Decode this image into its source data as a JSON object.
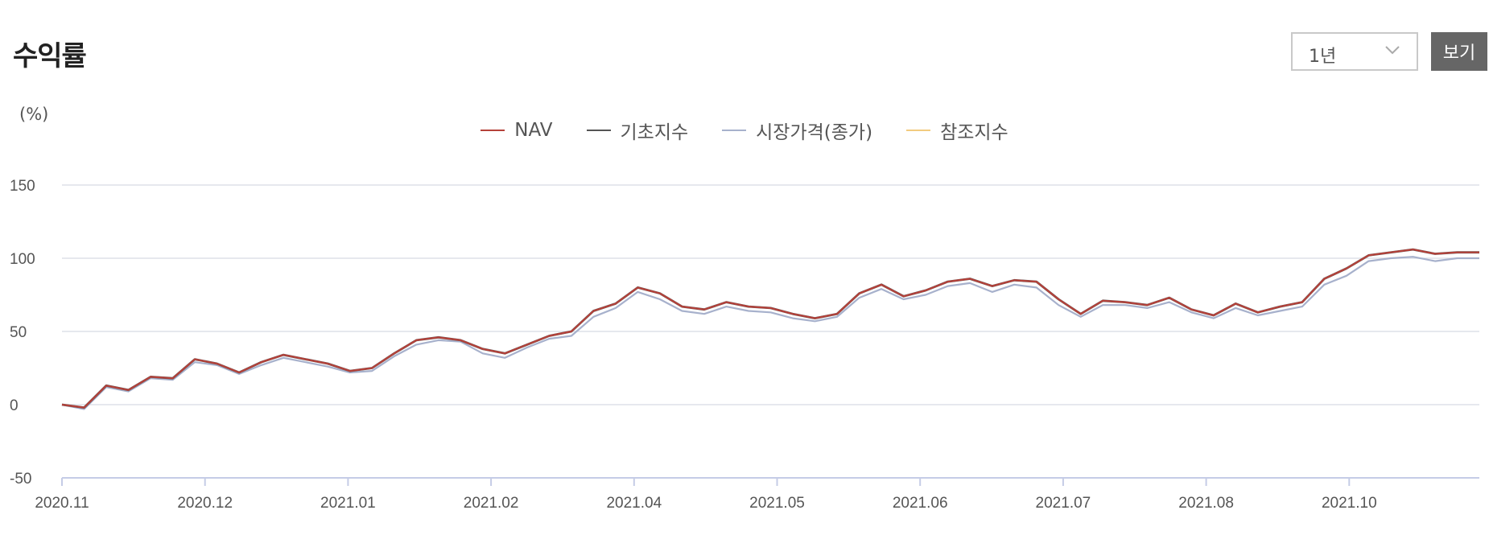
{
  "header": {
    "title": "수익률"
  },
  "controls": {
    "period": "1년",
    "view_label": "보기"
  },
  "chart_data": {
    "type": "line",
    "unit_label": "(%)",
    "title": "",
    "xlabel": "",
    "ylabel": "",
    "ylim": [
      -50,
      150
    ],
    "y_ticks": [
      150,
      100,
      50,
      0,
      -50
    ],
    "grid": true,
    "legend_position": "top-center",
    "x_tick_labels": [
      "2020.11",
      "2020.12",
      "2021.01",
      "2021.02",
      "2021.04",
      "2021.05",
      "2021.06",
      "2021.07",
      "2021.08",
      "2021.10"
    ],
    "series": [
      {
        "name": "NAV",
        "color": "#b5413a",
        "values": [
          0,
          -2,
          13,
          10,
          19,
          18,
          31,
          28,
          22,
          29,
          34,
          31,
          28,
          23,
          25,
          35,
          44,
          46,
          44,
          38,
          35,
          41,
          47,
          50,
          64,
          69,
          80,
          76,
          67,
          65,
          70,
          67,
          66,
          62,
          59,
          62,
          76,
          82,
          74,
          78,
          84,
          86,
          81,
          85,
          84,
          72,
          62,
          71,
          70,
          68,
          73,
          65,
          61,
          69,
          63,
          67,
          70,
          86,
          93,
          102,
          104,
          106,
          103,
          104,
          104
        ]
      },
      {
        "name": "기초지수",
        "color": "#555555",
        "values": [
          0,
          -2,
          13,
          10,
          19,
          18,
          31,
          28,
          22,
          29,
          34,
          31,
          28,
          23,
          25,
          35,
          44,
          46,
          44,
          38,
          35,
          41,
          47,
          50,
          64,
          69,
          80,
          76,
          67,
          65,
          70,
          67,
          66,
          62,
          59,
          62,
          76,
          82,
          74,
          78,
          84,
          86,
          81,
          85,
          84,
          72,
          62,
          71,
          70,
          68,
          73,
          65,
          61,
          69,
          63,
          67,
          70,
          86,
          93,
          102,
          104,
          106,
          103,
          104,
          104
        ]
      },
      {
        "name": "시장가격(종가)",
        "color": "#a7b1cc",
        "values": [
          0,
          -3,
          12,
          9,
          18,
          17,
          29,
          27,
          21,
          27,
          32,
          29,
          26,
          22,
          23,
          33,
          41,
          44,
          43,
          35,
          32,
          39,
          45,
          47,
          60,
          66,
          77,
          72,
          64,
          62,
          67,
          64,
          63,
          59,
          57,
          60,
          73,
          79,
          72,
          75,
          81,
          83,
          77,
          82,
          80,
          68,
          60,
          68,
          68,
          66,
          70,
          63,
          59,
          66,
          61,
          64,
          67,
          82,
          88,
          98,
          100,
          101,
          98,
          100,
          100
        ]
      },
      {
        "name": "참조지수",
        "color": "#f2cb7f",
        "values": []
      }
    ]
  }
}
